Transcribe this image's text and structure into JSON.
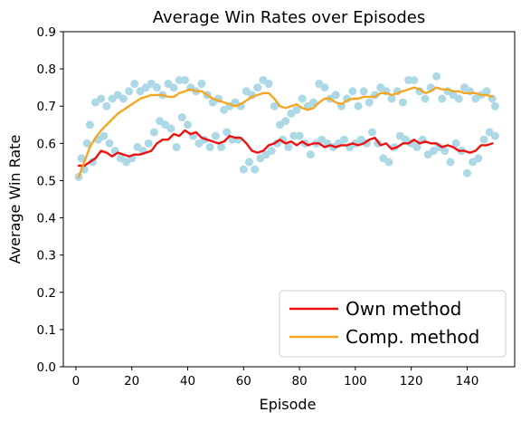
{
  "chart_data": {
    "type": "line",
    "title": "Average Win Rates over Episodes",
    "xlabel": "Episode",
    "ylabel": "Average Win Rate",
    "xlim": [
      -4.5,
      157
    ],
    "ylim": [
      0.0,
      0.9
    ],
    "xticks": [
      0,
      20,
      40,
      60,
      80,
      100,
      120,
      140
    ],
    "yticks": [
      0.0,
      0.1,
      0.2,
      0.3,
      0.4,
      0.5,
      0.6,
      0.7,
      0.8,
      0.9
    ],
    "grid": false,
    "legend_position": "lower-right",
    "series": [
      {
        "name": "Own method",
        "color": "#ee1111",
        "x": [
          1,
          3,
          5,
          7,
          9,
          11,
          13,
          15,
          17,
          19,
          21,
          23,
          25,
          27,
          29,
          31,
          33,
          35,
          37,
          39,
          41,
          43,
          45,
          47,
          49,
          51,
          53,
          55,
          57,
          59,
          61,
          63,
          65,
          67,
          69,
          71,
          73,
          75,
          77,
          79,
          81,
          83,
          85,
          87,
          89,
          91,
          93,
          95,
          97,
          99,
          101,
          103,
          105,
          107,
          109,
          111,
          113,
          115,
          117,
          119,
          121,
          123,
          125,
          127,
          129,
          131,
          133,
          135,
          137,
          139,
          141,
          143,
          145,
          147,
          149
        ],
        "values": [
          0.54,
          0.54,
          0.55,
          0.56,
          0.58,
          0.575,
          0.565,
          0.575,
          0.57,
          0.565,
          0.57,
          0.57,
          0.575,
          0.58,
          0.6,
          0.61,
          0.61,
          0.625,
          0.62,
          0.635,
          0.625,
          0.63,
          0.615,
          0.61,
          0.605,
          0.6,
          0.605,
          0.62,
          0.615,
          0.615,
          0.6,
          0.58,
          0.575,
          0.58,
          0.595,
          0.6,
          0.61,
          0.6,
          0.605,
          0.595,
          0.605,
          0.595,
          0.6,
          0.6,
          0.59,
          0.595,
          0.59,
          0.595,
          0.595,
          0.6,
          0.595,
          0.6,
          0.61,
          0.615,
          0.595,
          0.6,
          0.585,
          0.59,
          0.6,
          0.6,
          0.61,
          0.6,
          0.605,
          0.6,
          0.6,
          0.59,
          0.595,
          0.59,
          0.58,
          0.58,
          0.575,
          0.58,
          0.595,
          0.595,
          0.6
        ]
      },
      {
        "name": "Comp. method",
        "color": "#f5a623",
        "x": [
          1,
          3,
          5,
          7,
          9,
          11,
          13,
          15,
          17,
          19,
          21,
          23,
          25,
          27,
          29,
          31,
          33,
          35,
          37,
          39,
          41,
          43,
          45,
          47,
          49,
          51,
          53,
          55,
          57,
          59,
          61,
          63,
          65,
          67,
          69,
          71,
          73,
          75,
          77,
          79,
          81,
          83,
          85,
          87,
          89,
          91,
          93,
          95,
          97,
          99,
          101,
          103,
          105,
          107,
          109,
          111,
          113,
          115,
          117,
          119,
          121,
          123,
          125,
          127,
          129,
          131,
          133,
          135,
          137,
          139,
          141,
          143,
          145,
          147,
          149
        ],
        "values": [
          0.51,
          0.55,
          0.59,
          0.615,
          0.635,
          0.65,
          0.665,
          0.68,
          0.69,
          0.7,
          0.71,
          0.72,
          0.725,
          0.73,
          0.73,
          0.73,
          0.725,
          0.725,
          0.735,
          0.74,
          0.745,
          0.74,
          0.74,
          0.73,
          0.72,
          0.715,
          0.71,
          0.705,
          0.7,
          0.705,
          0.715,
          0.725,
          0.73,
          0.735,
          0.735,
          0.72,
          0.7,
          0.695,
          0.7,
          0.705,
          0.695,
          0.69,
          0.695,
          0.71,
          0.72,
          0.72,
          0.71,
          0.705,
          0.715,
          0.72,
          0.72,
          0.725,
          0.725,
          0.725,
          0.735,
          0.735,
          0.73,
          0.735,
          0.74,
          0.745,
          0.75,
          0.745,
          0.735,
          0.74,
          0.75,
          0.745,
          0.745,
          0.74,
          0.74,
          0.735,
          0.735,
          0.735,
          0.73,
          0.73,
          0.725
        ]
      }
    ],
    "scatter_color": "#add8e6",
    "scatter_points": [
      [
        1,
        0.51
      ],
      [
        2,
        0.56
      ],
      [
        3,
        0.53
      ],
      [
        4,
        0.6
      ],
      [
        5,
        0.65
      ],
      [
        6,
        0.55
      ],
      [
        7,
        0.71
      ],
      [
        8,
        0.61
      ],
      [
        9,
        0.72
      ],
      [
        10,
        0.62
      ],
      [
        11,
        0.7
      ],
      [
        12,
        0.6
      ],
      [
        13,
        0.72
      ],
      [
        14,
        0.58
      ],
      [
        15,
        0.73
      ],
      [
        16,
        0.56
      ],
      [
        17,
        0.72
      ],
      [
        18,
        0.55
      ],
      [
        19,
        0.74
      ],
      [
        20,
        0.56
      ],
      [
        21,
        0.76
      ],
      [
        22,
        0.59
      ],
      [
        23,
        0.74
      ],
      [
        24,
        0.58
      ],
      [
        25,
        0.75
      ],
      [
        26,
        0.6
      ],
      [
        27,
        0.76
      ],
      [
        28,
        0.63
      ],
      [
        29,
        0.75
      ],
      [
        30,
        0.66
      ],
      [
        31,
        0.73
      ],
      [
        32,
        0.65
      ],
      [
        33,
        0.76
      ],
      [
        34,
        0.64
      ],
      [
        35,
        0.75
      ],
      [
        36,
        0.59
      ],
      [
        37,
        0.77
      ],
      [
        38,
        0.67
      ],
      [
        39,
        0.77
      ],
      [
        40,
        0.65
      ],
      [
        41,
        0.75
      ],
      [
        42,
        0.62
      ],
      [
        43,
        0.74
      ],
      [
        44,
        0.6
      ],
      [
        45,
        0.76
      ],
      [
        46,
        0.61
      ],
      [
        47,
        0.73
      ],
      [
        48,
        0.59
      ],
      [
        49,
        0.71
      ],
      [
        50,
        0.62
      ],
      [
        51,
        0.72
      ],
      [
        52,
        0.59
      ],
      [
        53,
        0.69
      ],
      [
        54,
        0.63
      ],
      [
        55,
        0.7
      ],
      [
        56,
        0.61
      ],
      [
        57,
        0.71
      ],
      [
        58,
        0.61
      ],
      [
        59,
        0.7
      ],
      [
        60,
        0.53
      ],
      [
        61,
        0.74
      ],
      [
        62,
        0.55
      ],
      [
        63,
        0.73
      ],
      [
        64,
        0.53
      ],
      [
        65,
        0.75
      ],
      [
        66,
        0.56
      ],
      [
        67,
        0.77
      ],
      [
        68,
        0.57
      ],
      [
        69,
        0.76
      ],
      [
        70,
        0.58
      ],
      [
        71,
        0.7
      ],
      [
        72,
        0.6
      ],
      [
        73,
        0.65
      ],
      [
        74,
        0.61
      ],
      [
        75,
        0.66
      ],
      [
        76,
        0.59
      ],
      [
        77,
        0.68
      ],
      [
        78,
        0.62
      ],
      [
        79,
        0.69
      ],
      [
        80,
        0.62
      ],
      [
        81,
        0.72
      ],
      [
        82,
        0.6
      ],
      [
        83,
        0.7
      ],
      [
        84,
        0.57
      ],
      [
        85,
        0.71
      ],
      [
        86,
        0.6
      ],
      [
        87,
        0.76
      ],
      [
        88,
        0.61
      ],
      [
        89,
        0.75
      ],
      [
        90,
        0.6
      ],
      [
        91,
        0.72
      ],
      [
        92,
        0.59
      ],
      [
        93,
        0.73
      ],
      [
        94,
        0.6
      ],
      [
        95,
        0.7
      ],
      [
        96,
        0.61
      ],
      [
        97,
        0.72
      ],
      [
        98,
        0.59
      ],
      [
        99,
        0.74
      ],
      [
        100,
        0.6
      ],
      [
        101,
        0.7
      ],
      [
        102,
        0.61
      ],
      [
        103,
        0.74
      ],
      [
        104,
        0.6
      ],
      [
        105,
        0.71
      ],
      [
        106,
        0.63
      ],
      [
        107,
        0.73
      ],
      [
        108,
        0.6
      ],
      [
        109,
        0.75
      ],
      [
        110,
        0.56
      ],
      [
        111,
        0.74
      ],
      [
        112,
        0.55
      ],
      [
        113,
        0.72
      ],
      [
        114,
        0.59
      ],
      [
        115,
        0.74
      ],
      [
        116,
        0.62
      ],
      [
        117,
        0.71
      ],
      [
        118,
        0.61
      ],
      [
        119,
        0.77
      ],
      [
        120,
        0.6
      ],
      [
        121,
        0.77
      ],
      [
        122,
        0.59
      ],
      [
        123,
        0.74
      ],
      [
        124,
        0.61
      ],
      [
        125,
        0.72
      ],
      [
        126,
        0.57
      ],
      [
        127,
        0.75
      ],
      [
        128,
        0.58
      ],
      [
        129,
        0.78
      ],
      [
        130,
        0.59
      ],
      [
        131,
        0.72
      ],
      [
        132,
        0.58
      ],
      [
        133,
        0.74
      ],
      [
        134,
        0.55
      ],
      [
        135,
        0.73
      ],
      [
        136,
        0.6
      ],
      [
        137,
        0.72
      ],
      [
        138,
        0.58
      ],
      [
        139,
        0.75
      ],
      [
        140,
        0.52
      ],
      [
        141,
        0.74
      ],
      [
        142,
        0.55
      ],
      [
        143,
        0.72
      ],
      [
        144,
        0.56
      ],
      [
        145,
        0.73
      ],
      [
        146,
        0.61
      ],
      [
        147,
        0.74
      ],
      [
        148,
        0.63
      ],
      [
        149,
        0.72
      ],
      [
        150,
        0.62
      ],
      [
        150,
        0.7
      ]
    ]
  }
}
